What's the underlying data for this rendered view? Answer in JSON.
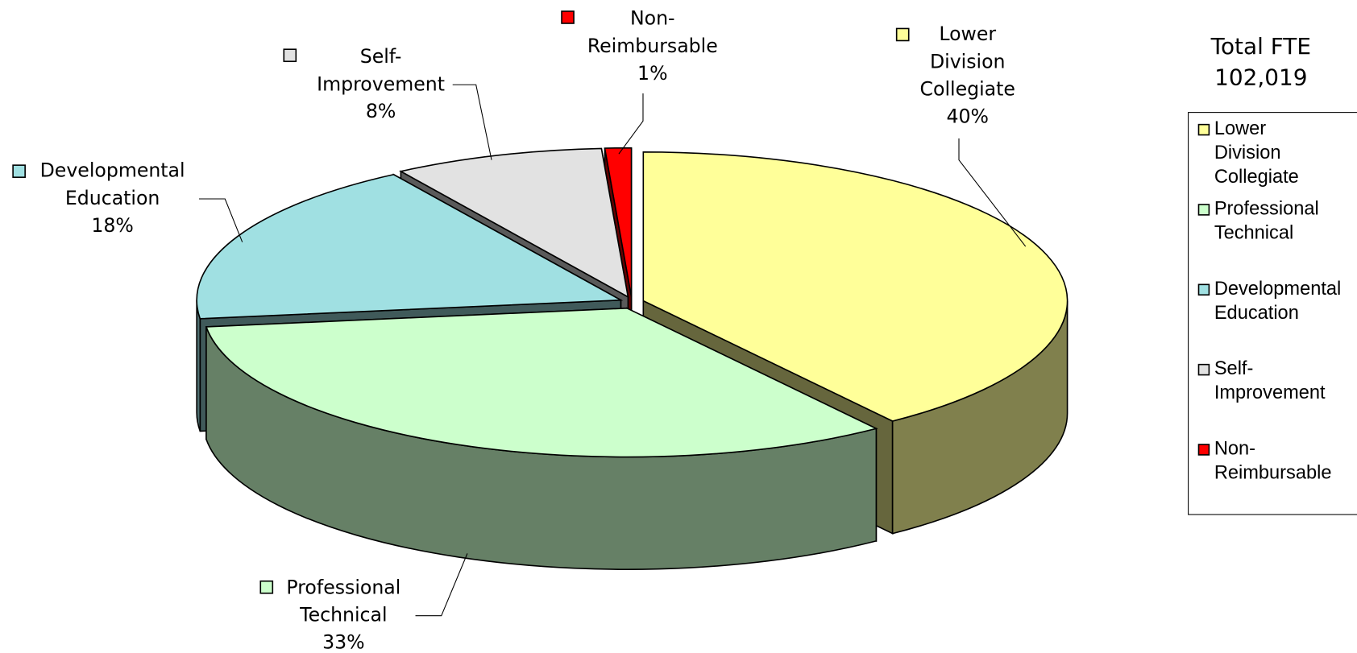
{
  "chart_data": {
    "type": "pie3d",
    "title": "Total FTE",
    "subtitle": "102,019",
    "categories": [
      "Lower Division Collegiate",
      "Professional Technical",
      "Developmental Education",
      "Self-Improvement",
      "Non-Reimbursable"
    ],
    "values": [
      40,
      33,
      18,
      8,
      1
    ],
    "value_labels": [
      "40%",
      "33%",
      "18%",
      "8%",
      "1%"
    ],
    "colors": [
      "#ffff99",
      "#ccffcc",
      "#a0e0e2",
      "#e2e2e2",
      "#ff0000"
    ],
    "legend": "right"
  }
}
